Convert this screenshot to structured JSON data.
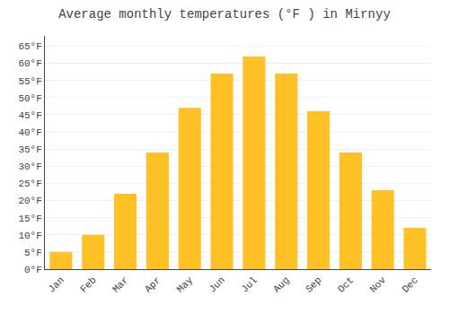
{
  "chart_data": {
    "type": "bar",
    "title": "Average monthly temperatures (°F ) in Mirnyy",
    "categories": [
      "Jan",
      "Feb",
      "Mar",
      "Apr",
      "May",
      "Jun",
      "Jul",
      "Aug",
      "Sep",
      "Oct",
      "Nov",
      "Dec"
    ],
    "values": [
      5,
      10,
      22,
      34,
      47,
      57,
      62,
      57,
      46,
      34,
      23,
      12
    ],
    "color": "#FFC125",
    "ylim": [
      0,
      68
    ],
    "yticks": [
      {
        "value": 0,
        "label": "0°F"
      },
      {
        "value": 5,
        "label": "5°F"
      },
      {
        "value": 10,
        "label": "10°F"
      },
      {
        "value": 15,
        "label": "15°F"
      },
      {
        "value": 20,
        "label": "20°F"
      },
      {
        "value": 25,
        "label": "25°F"
      },
      {
        "value": 30,
        "label": "30°F"
      },
      {
        "value": 35,
        "label": "35°F"
      },
      {
        "value": 40,
        "label": "40°F"
      },
      {
        "value": 45,
        "label": "45°F"
      },
      {
        "value": 50,
        "label": "50°F"
      },
      {
        "value": 55,
        "label": "55°F"
      },
      {
        "value": 60,
        "label": "60°F"
      },
      {
        "value": 65,
        "label": "65°F"
      }
    ],
    "grid": true
  }
}
